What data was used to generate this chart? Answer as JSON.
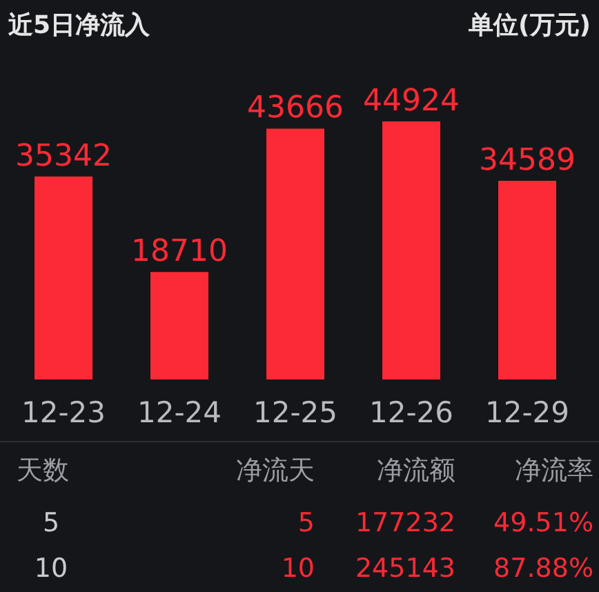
{
  "chart_data": {
    "type": "bar",
    "title": "近5日净流入",
    "subtitle": "单位(万元)",
    "categories": [
      "12-23",
      "12-24",
      "12-25",
      "12-26",
      "12-29"
    ],
    "values": [
      35342,
      18710,
      43666,
      44924,
      34589
    ],
    "color": "#fc2a36",
    "data_labels": true,
    "annotations": [
      "天数",
      "净流天",
      "净流额",
      "净流率",
      "5",
      "5",
      "177232",
      "49.51%",
      "10",
      "10",
      "245143",
      "87.88%"
    ]
  }
}
